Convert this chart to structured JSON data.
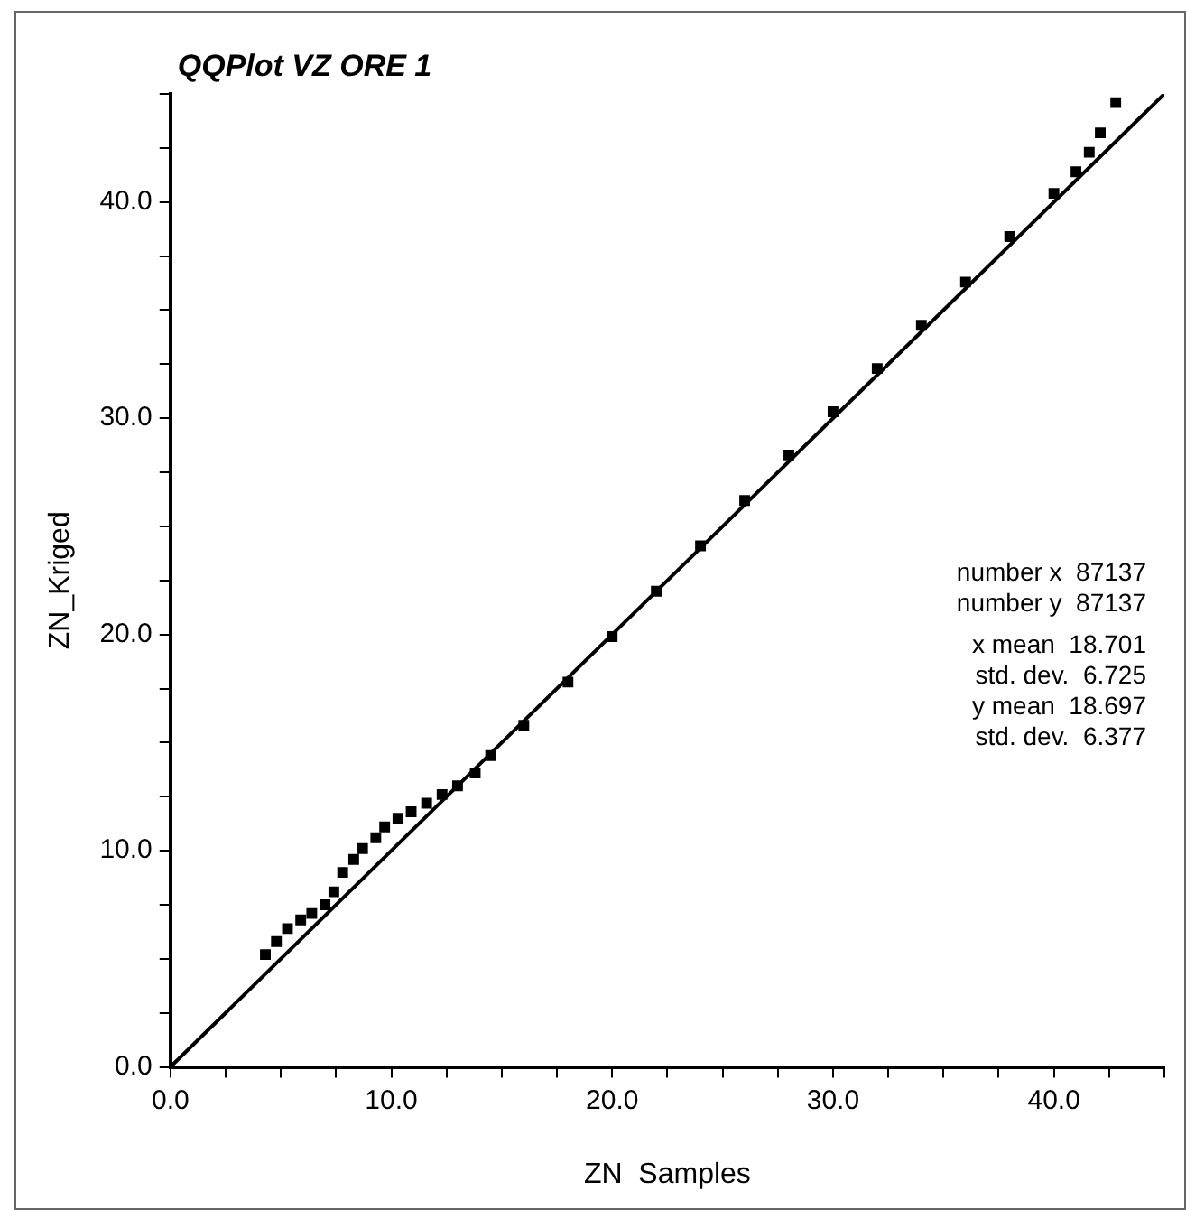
{
  "chart_data": {
    "type": "scatter",
    "title": "QQPlot VZ ORE 1",
    "xlabel": "ZN  Samples",
    "ylabel": "ZN_Kriged",
    "marker": "square",
    "xlim": [
      0,
      45
    ],
    "ylim": [
      0,
      45
    ],
    "xticks": [
      {
        "value": 0,
        "label": "0.0"
      },
      {
        "value": 2.5,
        "label": null
      },
      {
        "value": 5,
        "label": null
      },
      {
        "value": 7.5,
        "label": null
      },
      {
        "value": 10,
        "label": "10.0"
      },
      {
        "value": 12.5,
        "label": null
      },
      {
        "value": 15,
        "label": null
      },
      {
        "value": 17.5,
        "label": null
      },
      {
        "value": 20,
        "label": "20.0"
      },
      {
        "value": 22.5,
        "label": null
      },
      {
        "value": 25,
        "label": null
      },
      {
        "value": 27.5,
        "label": null
      },
      {
        "value": 30,
        "label": "30.0"
      },
      {
        "value": 32.5,
        "label": null
      },
      {
        "value": 35,
        "label": null
      },
      {
        "value": 37.5,
        "label": null
      },
      {
        "value": 40,
        "label": "40.0"
      },
      {
        "value": 42.5,
        "label": null
      },
      {
        "value": 45,
        "label": null
      }
    ],
    "yticks": [
      {
        "value": 0,
        "label": "0.0"
      },
      {
        "value": 2.5,
        "label": null
      },
      {
        "value": 5,
        "label": null
      },
      {
        "value": 7.5,
        "label": null
      },
      {
        "value": 10,
        "label": "10.0"
      },
      {
        "value": 12.5,
        "label": null
      },
      {
        "value": 15,
        "label": null
      },
      {
        "value": 17.5,
        "label": null
      },
      {
        "value": 20,
        "label": "20.0"
      },
      {
        "value": 22.5,
        "label": null
      },
      {
        "value": 25,
        "label": null
      },
      {
        "value": 27.5,
        "label": null
      },
      {
        "value": 30,
        "label": "30.0"
      },
      {
        "value": 32.5,
        "label": null
      },
      {
        "value": 35,
        "label": null
      },
      {
        "value": 37.5,
        "label": null
      },
      {
        "value": 40,
        "label": "40.0"
      },
      {
        "value": 42.5,
        "label": null
      },
      {
        "value": 45,
        "label": null
      }
    ],
    "series": [
      {
        "color": "#000000",
        "x": [
          4.3,
          4.8,
          5.3,
          5.9,
          6.4,
          7.0,
          7.4,
          7.8,
          8.3,
          8.7,
          9.3,
          9.7,
          10.3,
          10.9,
          11.6,
          12.3,
          13.0,
          13.8,
          14.5,
          16,
          18,
          20,
          22,
          24,
          26,
          28,
          30,
          32,
          34,
          36,
          38,
          40,
          41,
          41.6,
          42.1,
          42.8
        ],
        "values": [
          5.2,
          5.8,
          6.4,
          6.8,
          7.1,
          7.5,
          8.1,
          9.0,
          9.6,
          10.1,
          10.6,
          11.1,
          11.5,
          11.8,
          12.2,
          12.6,
          13.0,
          13.6,
          14.4,
          15.8,
          17.8,
          19.9,
          22.0,
          24.1,
          26.2,
          28.3,
          30.3,
          32.3,
          34.3,
          36.3,
          38.4,
          40.4,
          41.4,
          42.3,
          43.2,
          44.6
        ]
      },
      {
        "type": "line",
        "color": "#000000",
        "marker": "none",
        "x": [
          0,
          45
        ],
        "values": [
          0,
          45
        ]
      }
    ],
    "annotations": [
      "number x  87137",
      "number y  87137",
      "x mean  18.701",
      "std. dev.  6.725",
      "y mean  18.697",
      "std. dev.  6.377"
    ]
  }
}
